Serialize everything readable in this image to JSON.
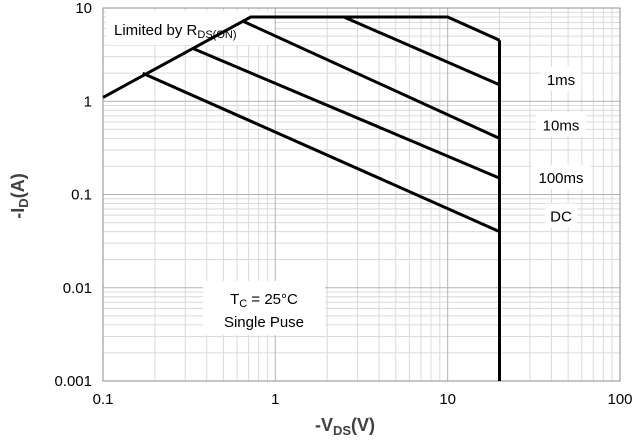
{
  "chart_data": {
    "type": "line",
    "x_scale": "log",
    "y_scale": "log",
    "xlim": [
      0.1,
      100
    ],
    "ylim": [
      0.001,
      10
    ],
    "grid": true,
    "xlabel": {
      "prefix": "-V",
      "sub": "DS",
      "suffix": "(V)"
    },
    "ylabel": {
      "prefix": "-I",
      "sub": "D",
      "suffix": "(A)"
    },
    "x_ticks": [
      {
        "value": 0.1,
        "label": "0.1"
      },
      {
        "value": 1,
        "label": "1"
      },
      {
        "value": 10,
        "label": "10"
      },
      {
        "value": 100,
        "label": "100"
      }
    ],
    "y_ticks": [
      {
        "value": 0.001,
        "label": "0.001"
      },
      {
        "value": 0.01,
        "label": "0.01"
      },
      {
        "value": 0.1,
        "label": "0.1"
      },
      {
        "value": 1,
        "label": "1"
      },
      {
        "value": 10,
        "label": "10"
      }
    ],
    "limit_note": {
      "prefix": "Limited by R",
      "sub": "DS(ON)"
    },
    "conditions": {
      "temp": {
        "prefix": "T",
        "sub": "C",
        "suffix": " = 25°C"
      },
      "mode": "Single Puse"
    },
    "series": [
      {
        "name": "1ms",
        "x": [
          0.1,
          0.72,
          10,
          20
        ],
        "y": [
          1.1,
          8,
          8,
          4.5
        ]
      },
      {
        "name": "1ms",
        "x": [
          2.5,
          20
        ],
        "y": [
          8,
          1.5
        ]
      },
      {
        "name": "10ms",
        "x": [
          0.65,
          20
        ],
        "y": [
          7.2,
          0.4
        ]
      },
      {
        "name": "100ms",
        "x": [
          0.33,
          20
        ],
        "y": [
          3.7,
          0.15
        ]
      },
      {
        "name": "DC",
        "x": [
          0.17,
          20
        ],
        "y": [
          2.0,
          0.04
        ]
      },
      {
        "name": "",
        "x": [
          20,
          20
        ],
        "y": [
          4.5,
          0.001
        ]
      }
    ],
    "series_labels": [
      {
        "name": "1ms",
        "y": 1.7
      },
      {
        "name": "10ms",
        "y": 0.55
      },
      {
        "name": "100ms",
        "y": 0.15
      },
      {
        "name": "DC",
        "y": 0.058
      }
    ]
  }
}
